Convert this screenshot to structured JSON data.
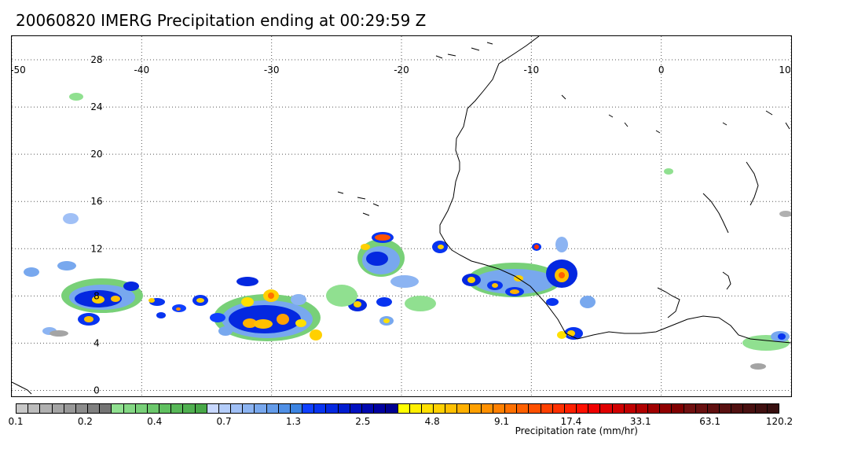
{
  "title": "20060820 IMERG Precipitation ending at 00:29:59 Z",
  "map": {
    "lon_ticks": [
      "-50",
      "-40",
      "-30",
      "-20",
      "-10",
      "0",
      "10"
    ],
    "lat_ticks": [
      "28",
      "24",
      "20",
      "16",
      "12",
      "8",
      "4",
      "0"
    ],
    "lon_range": [
      -50,
      10
    ],
    "lat_range": [
      -0.5,
      30
    ],
    "grid": "dotted"
  },
  "colorbar": {
    "label": "Precipitation rate (mm/hr)",
    "tick_labels": [
      "0.1",
      "0.2",
      "0.4",
      "0.7",
      "1.3",
      "2.5",
      "4.8",
      "9.1",
      "17.4",
      "33.1",
      "63.1",
      "120.2"
    ],
    "colors": [
      "#c8c8c8",
      "#bcbcbc",
      "#b0b0b0",
      "#a4a4a4",
      "#989898",
      "#8c8c8c",
      "#808080",
      "#747474",
      "#90e090",
      "#84d884",
      "#78d078",
      "#6cc86c",
      "#60c060",
      "#58b858",
      "#50b050",
      "#48a848",
      "#c8d8ff",
      "#b4cdfa",
      "#a0c0f6",
      "#8cb4f2",
      "#78a8ee",
      "#649cea",
      "#5090e6",
      "#3c84e2",
      "#1040ff",
      "#0834f0",
      "#0428e0",
      "#001cd0",
      "#0010c0",
      "#0008b0",
      "#0000a0",
      "#000090",
      "#ffff00",
      "#fff000",
      "#ffe000",
      "#ffd000",
      "#ffc000",
      "#ffb000",
      "#ffa000",
      "#ff9000",
      "#ff8000",
      "#ff7000",
      "#ff6000",
      "#ff5000",
      "#ff4000",
      "#ff3000",
      "#ff2000",
      "#ff1000",
      "#f00000",
      "#e00000",
      "#d00000",
      "#c00000",
      "#b00000",
      "#a00000",
      "#900000",
      "#800000",
      "#701010",
      "#681010",
      "#601010",
      "#581010",
      "#501010",
      "#481010",
      "#401010",
      "#381010"
    ]
  }
}
